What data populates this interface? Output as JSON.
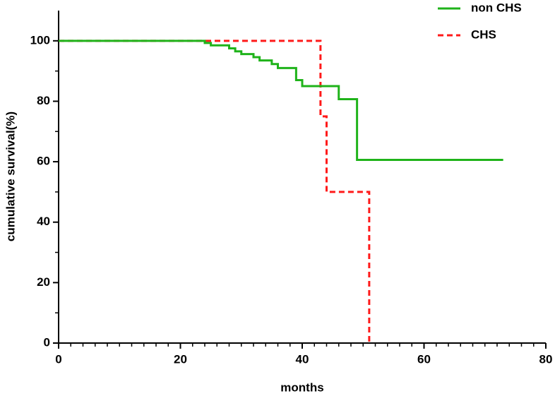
{
  "chart_data": {
    "type": "line",
    "step": true,
    "x_label": "months",
    "y_label": "cumulative survival(%)",
    "xlim": [
      0,
      80
    ],
    "xticks": [
      0,
      20,
      40,
      60,
      80
    ],
    "xminorticks": [
      2,
      4,
      6,
      8,
      10,
      12,
      14,
      16,
      18,
      22,
      24,
      26,
      28,
      30,
      32,
      34,
      36,
      38,
      42,
      44,
      46,
      48,
      50,
      52,
      54,
      56,
      58,
      62,
      64,
      66,
      68,
      70,
      72,
      74,
      76,
      78
    ],
    "ylim": [
      0,
      110
    ],
    "yticks": [
      0,
      20,
      40,
      60,
      80,
      100
    ],
    "yminorticks": [
      10,
      30,
      50,
      70,
      90
    ],
    "legend": "top-right",
    "series": [
      {
        "name": "non CHS",
        "color": "#1fb31a",
        "line_style": "solid",
        "x": [
          0,
          24,
          24,
          25,
          25,
          28,
          28,
          29,
          29,
          30,
          30,
          32,
          32,
          33,
          33,
          35,
          35,
          36,
          36,
          39,
          39,
          40,
          40,
          46,
          46,
          49,
          49,
          73
        ],
        "values": [
          100,
          100,
          99.3,
          99.3,
          98.5,
          98.5,
          97.5,
          97.5,
          96.5,
          96.5,
          95.6,
          95.6,
          94.6,
          94.6,
          93.5,
          93.5,
          92.3,
          92.3,
          91,
          91,
          87,
          87,
          85,
          85,
          80.7,
          80.7,
          60.6,
          60.6
        ]
      },
      {
        "name": "CHS",
        "color": "#ff1a1a",
        "line_style": "dashed",
        "x": [
          0,
          43,
          43,
          44,
          44,
          51,
          51
        ],
        "values": [
          100,
          100,
          75,
          75,
          50,
          50,
          0
        ]
      }
    ]
  }
}
